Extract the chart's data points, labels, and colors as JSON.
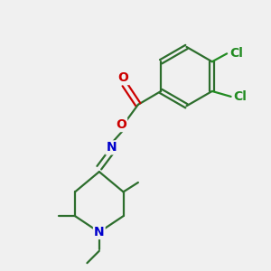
{
  "background_color": "#f0f0f0",
  "atom_colors": {
    "C": "#2d6e2d",
    "N": "#0000cc",
    "O": "#cc0000",
    "Cl": "#228B22"
  },
  "line_color": "#2d6e2d",
  "line_width": 1.6,
  "font_size_atom": 10,
  "fig_size": [
    3.0,
    3.0
  ],
  "dpi": 100
}
